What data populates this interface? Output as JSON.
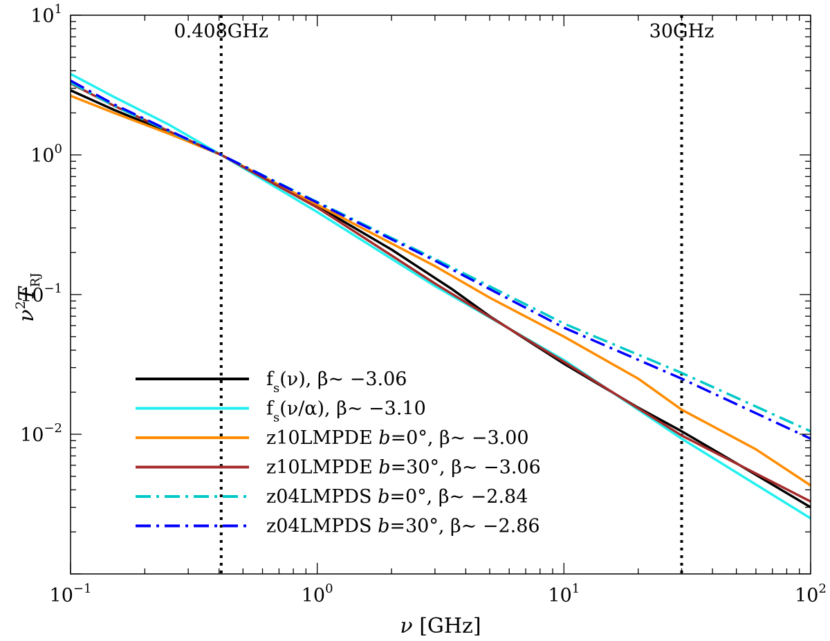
{
  "chart_data": {
    "type": "line",
    "x_scale": "log",
    "y_scale": "log",
    "xlim": [
      0.1,
      100
    ],
    "ylim": [
      0.001,
      10
    ],
    "xlabel": {
      "greek": "ν",
      "text": " [GHz]"
    },
    "ylabel": {
      "nu": "ν",
      "sup": "2",
      "T": "T",
      "sub": "RJ"
    },
    "x_ticks": [
      {
        "value": 0.1,
        "base": "10",
        "exp": "−1"
      },
      {
        "value": 1,
        "base": "10",
        "exp": "0"
      },
      {
        "value": 10,
        "base": "10",
        "exp": "1"
      },
      {
        "value": 100,
        "base": "10",
        "exp": "2"
      }
    ],
    "y_ticks": [
      {
        "value": 0.01,
        "base": "10",
        "exp": "−2"
      },
      {
        "value": 0.1,
        "base": "10",
        "exp": "−1"
      },
      {
        "value": 1,
        "base": "10",
        "exp": "0"
      },
      {
        "value": 10,
        "base": "10",
        "exp": "1"
      }
    ],
    "vertical_markers": [
      {
        "x": 0.408,
        "label": "0.408GHz",
        "style": "dotted",
        "color": "#000000"
      },
      {
        "x": 30,
        "label": "30GHz",
        "style": "dotted",
        "color": "#000000"
      }
    ],
    "series": [
      {
        "name": "fs_nu",
        "legend": {
          "main": "f",
          "sub": "s",
          "rest": "(ν),  β~ −3.06"
        },
        "color": "#000000",
        "dash": "solid",
        "points": [
          [
            0.1,
            2.9
          ],
          [
            0.15,
            2.1
          ],
          [
            0.25,
            1.45
          ],
          [
            0.408,
            1.0
          ],
          [
            1,
            0.43
          ],
          [
            2,
            0.21
          ],
          [
            3.5,
            0.11
          ],
          [
            5,
            0.07
          ],
          [
            10,
            0.032
          ],
          [
            20,
            0.0155
          ],
          [
            30,
            0.0105
          ],
          [
            50,
            0.0062
          ],
          [
            100,
            0.003
          ]
        ]
      },
      {
        "name": "fs_nu_alpha",
        "legend": {
          "main": "f",
          "sub": "s",
          "rest": "(ν/α),  β~ −3.10"
        },
        "color": "#22f0f0",
        "dash": "solid",
        "points": [
          [
            0.1,
            3.8
          ],
          [
            0.15,
            2.6
          ],
          [
            0.25,
            1.65
          ],
          [
            0.408,
            1.0
          ],
          [
            1,
            0.39
          ],
          [
            3,
            0.115
          ],
          [
            10,
            0.034
          ],
          [
            30,
            0.0093
          ],
          [
            100,
            0.0025
          ]
        ]
      },
      {
        "name": "z10LMPDE_b0",
        "legend": {
          "main": "z10LMPDE  ",
          "b": "b",
          "rest": "=0°,    β~ −3.00"
        },
        "color": "#ff8c00",
        "dash": "solid",
        "points": [
          [
            0.1,
            2.65
          ],
          [
            0.15,
            2.0
          ],
          [
            0.25,
            1.42
          ],
          [
            0.408,
            1.0
          ],
          [
            1,
            0.44
          ],
          [
            3,
            0.16
          ],
          [
            5,
            0.095
          ],
          [
            10,
            0.05
          ],
          [
            20,
            0.025
          ],
          [
            30,
            0.015
          ],
          [
            60,
            0.0078
          ],
          [
            100,
            0.0043
          ]
        ]
      },
      {
        "name": "z10LMPDE_b30",
        "legend": {
          "main": "z10LMPDE  ",
          "b": "b",
          "rest": "=30°,  β~ −3.06"
        },
        "color": "#a52a2a",
        "dash": "solid",
        "points": [
          [
            0.1,
            3.25
          ],
          [
            0.15,
            2.25
          ],
          [
            0.25,
            1.48
          ],
          [
            0.408,
            1.0
          ],
          [
            1,
            0.42
          ],
          [
            3,
            0.12
          ],
          [
            10,
            0.033
          ],
          [
            30,
            0.0098
          ],
          [
            100,
            0.0033
          ]
        ]
      },
      {
        "name": "z04LMPDS_b0",
        "legend": {
          "main": "z04LMPDS  ",
          "b": "b",
          "rest": "=0°,    β~ −2.84"
        },
        "color": "#00c8c8",
        "dash": "dashdot",
        "points": [
          [
            0.1,
            3.3
          ],
          [
            0.15,
            2.25
          ],
          [
            0.25,
            1.48
          ],
          [
            0.408,
            1.0
          ],
          [
            1,
            0.46
          ],
          [
            3,
            0.18
          ],
          [
            10,
            0.062
          ],
          [
            30,
            0.0275
          ],
          [
            100,
            0.0105
          ]
        ]
      },
      {
        "name": "z04LMPDS_b30",
        "legend": {
          "main": "z04LMPDS  ",
          "b": "b",
          "rest": "=30°,  β~ −2.86"
        },
        "color": "#0000ff",
        "dash": "dashdot",
        "points": [
          [
            0.1,
            3.4
          ],
          [
            0.15,
            2.3
          ],
          [
            0.25,
            1.5
          ],
          [
            0.408,
            1.0
          ],
          [
            1,
            0.455
          ],
          [
            3,
            0.175
          ],
          [
            10,
            0.058
          ],
          [
            30,
            0.025
          ],
          [
            100,
            0.0093
          ]
        ]
      }
    ]
  }
}
